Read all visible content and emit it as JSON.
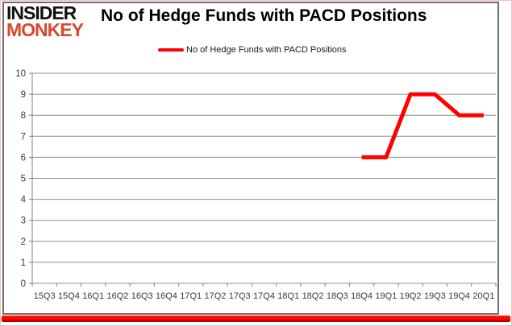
{
  "logo": {
    "line1": "INSIDER",
    "line2": "MONKEY"
  },
  "header": {
    "title": "No of Hedge Funds with PACD Positions"
  },
  "legend": {
    "label": "No of Hedge Funds with PACD Positions",
    "swatch_color": "#ff0000"
  },
  "colors": {
    "series_red": "#ff0000",
    "gridline_gray": "#8c8c8c",
    "axis_gray": "#7f7f7f",
    "label_color": "#3a3a3a",
    "frame_gray": "#6e6e6e",
    "logo_red": "#d7492f",
    "bottom_strip_red": "#fe0000"
  },
  "chart_data": {
    "type": "line",
    "title": "No of Hedge Funds with PACD Positions",
    "xlabel": "",
    "ylabel": "",
    "ylim": [
      0,
      10
    ],
    "ytick_step": 1,
    "grid": true,
    "legend_position": "top",
    "categories": [
      "15Q3",
      "15Q4",
      "16Q1",
      "16Q2",
      "16Q3",
      "16Q4",
      "17Q1",
      "17Q2",
      "17Q3",
      "17Q4",
      "18Q1",
      "18Q2",
      "18Q3",
      "18Q4",
      "19Q1",
      "19Q2",
      "19Q3",
      "19Q4",
      "20Q1"
    ],
    "series": [
      {
        "name": "No of Hedge Funds with PACD Positions",
        "color": "#ff0000",
        "values": [
          null,
          null,
          null,
          null,
          null,
          null,
          null,
          null,
          null,
          null,
          null,
          null,
          null,
          6,
          6,
          9,
          9,
          8,
          8
        ]
      }
    ]
  }
}
